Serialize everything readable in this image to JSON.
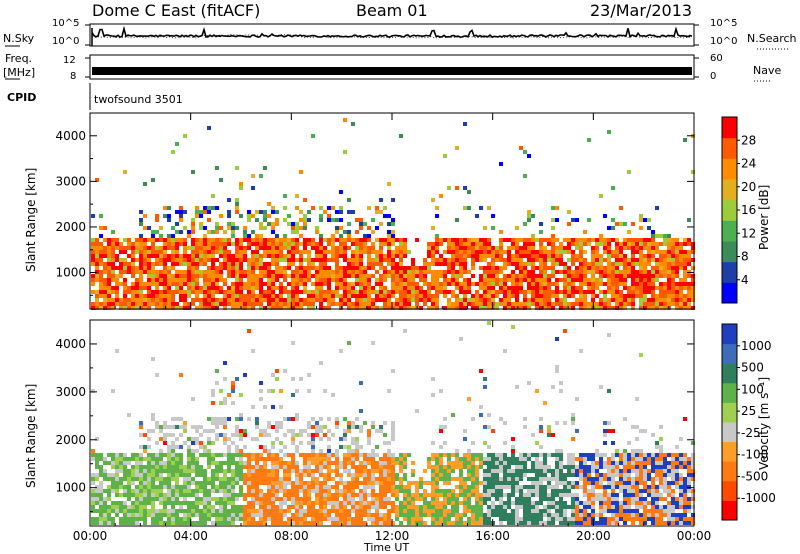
{
  "header": {
    "station": "Dome C East (fitACF)",
    "beam": "Beam 01",
    "date": "23/Mar/2013"
  },
  "top_panels": {
    "nsky_label": "N.Sky",
    "nsearch_label": "N.Search",
    "noise_tick_high": "10^5",
    "noise_tick_low": "10^0",
    "freq_label_line1": "Freq.",
    "freq_label_line2": "[MHz]",
    "freq_ticks": [
      "12",
      "8"
    ],
    "nave_label": "Nave",
    "nave_ticks": [
      "60",
      "0"
    ],
    "cpid_label": "CPID",
    "cpid_value": "twofsound 3501"
  },
  "colors": {
    "power_scale": [
      "#0000ff",
      "#1e3fa8",
      "#3c8c5a",
      "#4caf50",
      "#9ccc3c",
      "#e0b020",
      "#ff8c00",
      "#ff5a00",
      "#ff0000"
    ],
    "velocity_scale": [
      "#1f3fbf",
      "#3d6db8",
      "#2f7f5f",
      "#5fb24a",
      "#9fd04f",
      "#c8c8c8",
      "#ff9d2a",
      "#ff7a10",
      "#ff4a00",
      "#ff0000"
    ]
  },
  "chart_data": [
    {
      "type": "heatmap",
      "panel": "power",
      "ylabel": "Slant Range [km]",
      "xlabel": "",
      "ylim": [
        200,
        4500
      ],
      "yticks": [
        1000,
        2000,
        3000,
        4000
      ],
      "xticks": [
        "00:00",
        "04:00",
        "08:00",
        "12:00",
        "16:00",
        "20:00",
        "00:00"
      ],
      "colorbar": {
        "label": "Power [dB]",
        "ticks": [
          4,
          8,
          12,
          16,
          20,
          24,
          28
        ],
        "range": [
          0,
          32
        ]
      }
    },
    {
      "type": "heatmap",
      "panel": "velocity",
      "ylabel": "Slant Range [km]",
      "xlabel": "Time UT",
      "ylim": [
        200,
        4500
      ],
      "yticks": [
        1000,
        2000,
        3000,
        4000
      ],
      "xticks": [
        "00:00",
        "04:00",
        "08:00",
        "12:00",
        "16:00",
        "20:00",
        "00:00"
      ],
      "colorbar": {
        "label": "Velocity [m s⁻¹]",
        "ticks": [
          "1000",
          "500",
          "100",
          "25",
          "-25",
          "-100",
          "-500",
          "-1000"
        ]
      }
    }
  ]
}
